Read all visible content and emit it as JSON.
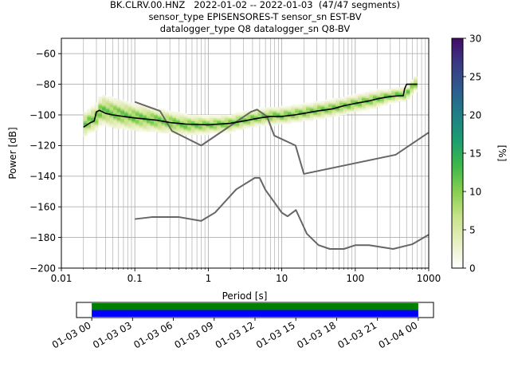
{
  "title_lines": [
    "BK.CLRV.00.HNZ   2022-01-02 -- 2022-01-03  (47/47 segments)",
    "sensor_type EPISENSORES-T sensor_sn EST-BV",
    "datalogger_type Q8 datalogger_sn Q8-BV"
  ],
  "chart_data": [
    {
      "type": "heatmap",
      "xlabel": "Period [s]",
      "ylabel": "Power [dB]",
      "x_scale": "log",
      "xlim": [
        0.01,
        1000
      ],
      "ylim": [
        -200,
        -50
      ],
      "grid": true,
      "x_ticks": [
        {
          "value": 0.01,
          "label": "0.01"
        },
        {
          "value": 0.1,
          "label": "0.1"
        },
        {
          "value": 1,
          "label": "1"
        },
        {
          "value": 10,
          "label": "10"
        },
        {
          "value": 100,
          "label": "100"
        },
        {
          "value": 1000,
          "label": "1000"
        }
      ],
      "y_ticks": [
        {
          "value": -60,
          "label": "−60"
        },
        {
          "value": -80,
          "label": "−80"
        },
        {
          "value": -100,
          "label": "−100"
        },
        {
          "value": -120,
          "label": "−120"
        },
        {
          "value": -140,
          "label": "−140"
        },
        {
          "value": -160,
          "label": "−160"
        },
        {
          "value": -180,
          "label": "−180"
        },
        {
          "value": -200,
          "label": "−200"
        }
      ],
      "colorbar": {
        "label": "[%]",
        "range": [
          0,
          30
        ],
        "ticks": [
          {
            "value": 0,
            "label": "0"
          },
          {
            "value": 5,
            "label": "5"
          },
          {
            "value": 10,
            "label": "10"
          },
          {
            "value": 15,
            "label": "15"
          },
          {
            "value": 20,
            "label": "20"
          },
          {
            "value": 25,
            "label": "25"
          },
          {
            "value": 30,
            "label": "30"
          }
        ],
        "colors": [
          "#ffffff",
          "#e9efc2",
          "#c7e38a",
          "#86cf4f",
          "#3fb84a",
          "#1b9e6f",
          "#1f7f87",
          "#2d5c8e",
          "#3b3a83",
          "#420a68"
        ]
      },
      "psd_band": {
        "period": [
          0.02,
          0.025,
          0.03,
          0.035,
          0.05,
          0.1,
          0.2,
          0.5,
          1,
          2,
          3,
          5,
          8,
          10,
          20,
          50,
          100,
          200,
          300,
          400,
          500,
          600,
          700
        ],
        "center": [
          -107,
          -104,
          -102,
          -97,
          -99,
          -102,
          -104,
          -107,
          -107,
          -106,
          -104,
          -102,
          -101,
          -101,
          -99,
          -96,
          -93,
          -90,
          -88,
          -87,
          -87,
          -82,
          -79
        ],
        "spread": [
          7,
          7,
          8,
          9,
          9,
          8,
          7,
          6,
          5,
          5,
          5,
          5,
          5,
          5,
          5,
          5,
          5,
          5,
          4,
          4,
          4,
          4,
          4
        ]
      },
      "series": [
        {
          "role": "mode",
          "color": "#000000",
          "x": [
            0.02,
            0.025,
            0.028,
            0.03,
            0.033,
            0.04,
            0.05,
            0.07,
            0.1,
            0.2,
            0.3,
            0.5,
            1,
            2,
            3,
            5,
            7,
            10,
            15,
            20,
            30,
            50,
            70,
            100,
            150,
            200,
            300,
            400,
            450,
            470,
            500,
            600,
            700
          ],
          "y": [
            -108,
            -105,
            -104,
            -98,
            -97,
            -99,
            -100,
            -101,
            -102,
            -103.5,
            -105,
            -106,
            -106.5,
            -105.5,
            -104,
            -102,
            -101,
            -101,
            -100,
            -99,
            -97.5,
            -96,
            -94,
            -92.5,
            -91,
            -89.5,
            -88,
            -87.5,
            -87.5,
            -83,
            -80,
            -80,
            -80
          ]
        },
        {
          "role": "high-noise-model",
          "color": "#666666",
          "x": [
            0.1,
            0.22,
            0.32,
            0.8,
            3.8,
            4.6,
            6.3,
            7.9,
            15.4,
            20,
            354.8,
            1000
          ],
          "y": [
            -91.5,
            -97.4,
            -110.5,
            -120,
            -98,
            -96.5,
            -101,
            -113.5,
            -120,
            -138.5,
            -126,
            -111.5
          ]
        },
        {
          "role": "low-noise-model",
          "color": "#666666",
          "x": [
            0.1,
            0.17,
            0.4,
            0.8,
            1.24,
            2.4,
            4.3,
            5,
            6,
            10,
            12,
            15.6,
            21.9,
            31.6,
            45,
            70,
            101,
            154,
            328,
            600,
            1000
          ],
          "y": [
            -168,
            -166.7,
            -166.7,
            -169.2,
            -163.7,
            -148.6,
            -141.1,
            -141.1,
            -149,
            -163.8,
            -166.2,
            -162.1,
            -177.5,
            -185,
            -187.5,
            -187.5,
            -185,
            -185,
            -187.5,
            -184.4,
            -178.2
          ]
        }
      ]
    },
    {
      "type": "bar",
      "role": "data-coverage-timeline",
      "xlim_labels": [
        "01-03 00",
        "01-04 00"
      ],
      "tick_labels": [
        "01-03 00",
        "01-03 03",
        "01-03 06",
        "01-03 09",
        "01-03 12",
        "01-03 15",
        "01-03 18",
        "01-03 21",
        "01-04 00"
      ],
      "tick_hours": [
        0,
        3,
        6,
        9,
        12,
        15,
        18,
        21,
        24
      ],
      "view_range_hours": [
        -1.12,
        25.12
      ],
      "coverage_hours": [
        0,
        24
      ],
      "rows": [
        {
          "color": "#008000",
          "start": 0,
          "end": 24
        },
        {
          "color": "#0000ff",
          "start": 0,
          "end": 24
        }
      ]
    }
  ]
}
